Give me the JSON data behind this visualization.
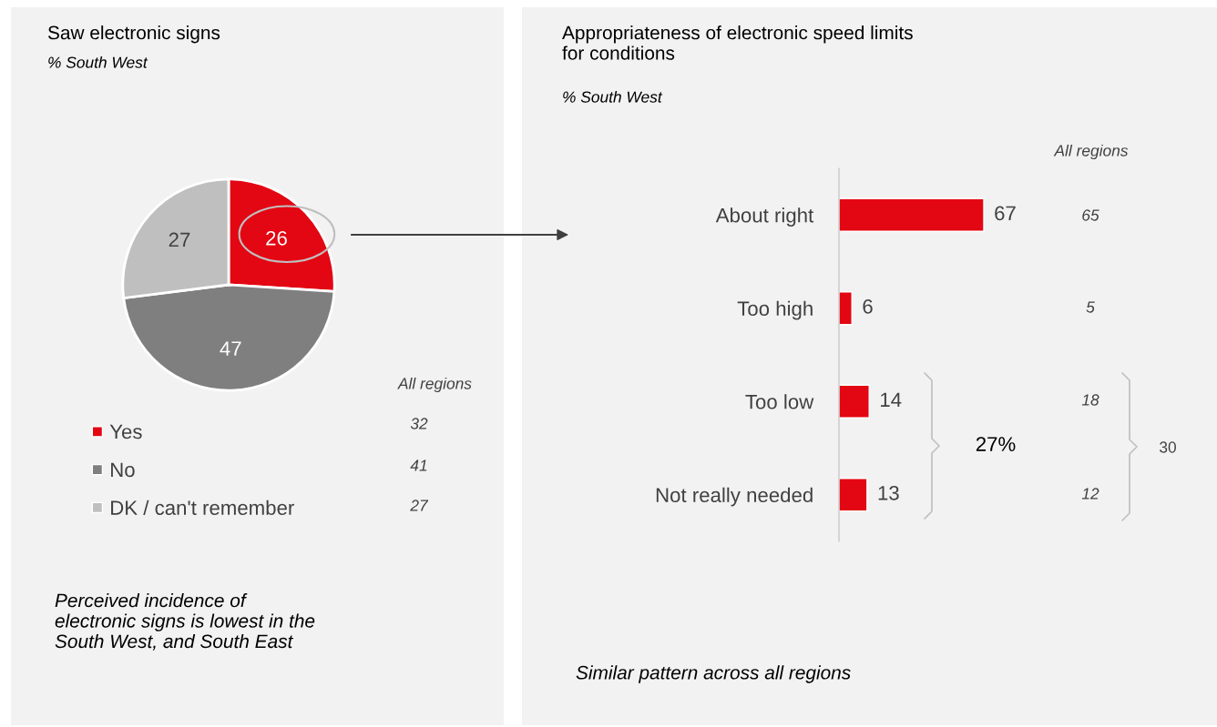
{
  "chart_data": [
    {
      "type": "pie",
      "title": "Saw electronic signs",
      "subtitle": "% South West",
      "categories": [
        "Yes",
        "No",
        "DK / can't remember"
      ],
      "values": [
        26,
        47,
        27
      ],
      "colors": [
        "#e30613",
        "#7f7f7f",
        "#bfbfbf"
      ],
      "data_labels": true,
      "legend": "bottom",
      "annotations": [
        "All regions",
        "32",
        "41",
        "27",
        "Perceived incidence of\nelectronic signs is lowest in the\nSouth West, and South East"
      ]
    },
    {
      "type": "bar",
      "orientation": "horizontal",
      "title": "Appropriateness of electronic speed limits\nfor conditions",
      "subtitle": "% South West",
      "categories": [
        "About right",
        "Too high",
        "Too low",
        "Not really needed"
      ],
      "values": [
        67,
        6,
        14,
        13
      ],
      "color": "#e30613",
      "data_labels": true,
      "annotations": [
        "All regions",
        "65",
        "5",
        "18",
        "12",
        "27%",
        "30",
        "Similar pattern across all regions"
      ]
    }
  ]
}
